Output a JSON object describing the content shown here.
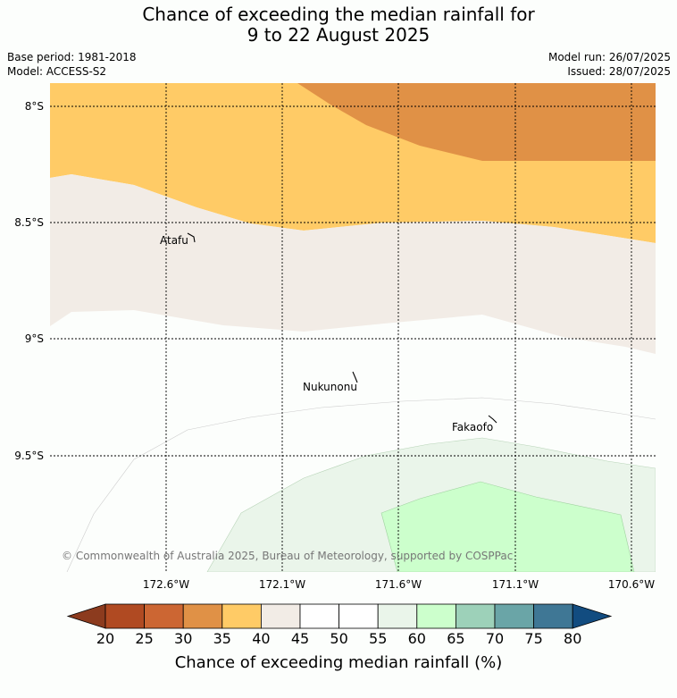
{
  "title": {
    "line1": "Chance of exceeding the median rainfall for",
    "line2": "9 to 22 August 2025"
  },
  "meta": {
    "base_period": "Base period: 1981-2018",
    "model": "Model: ACCESS-S2",
    "model_run": "Model run: 26/07/2025",
    "issued": "Issued: 28/07/2025"
  },
  "map": {
    "lat_labels": [
      "8°S",
      "8.5°S",
      "9°S",
      "9.5°S"
    ],
    "lon_labels": [
      "172.6°W",
      "172.1°W",
      "171.6°W",
      "171.1°W",
      "170.6°W"
    ],
    "places": [
      {
        "name": "Atafu"
      },
      {
        "name": "Nukunonu"
      },
      {
        "name": "Fakaofo"
      }
    ],
    "copyright": "© Commonwealth of Australia 2025, Bureau of Meteorology, supported by COSPPac"
  },
  "colorbar": {
    "label": "Chance of exceeding median rainfall (%)",
    "ticks": [
      "20",
      "25",
      "30",
      "35",
      "40",
      "45",
      "50",
      "55",
      "60",
      "65",
      "70",
      "75",
      "80"
    ],
    "colors": [
      "#8c3b1e",
      "#b04a22",
      "#cc6633",
      "#e09146",
      "#ffcb66",
      "#f2ece6",
      "#ffffff",
      "#ffffff",
      "#eaf5ea",
      "#ccffcc",
      "#9dd1b9",
      "#6aa5a7",
      "#3f7795",
      "#124c80"
    ]
  }
}
